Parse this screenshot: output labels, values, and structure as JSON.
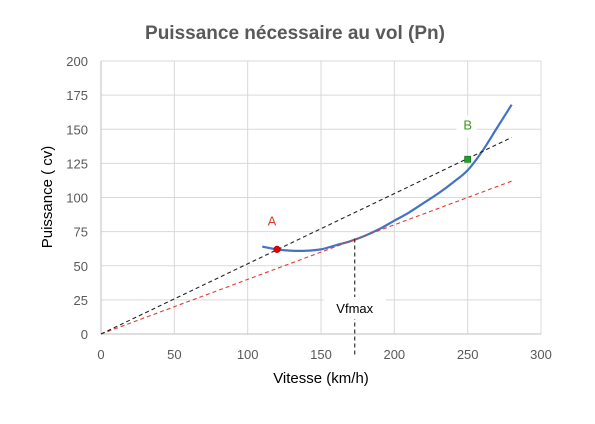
{
  "chart_data": {
    "type": "line",
    "title": "Puissance nécessaire au vol (Pn)",
    "xlabel": "Vitesse (km/h)",
    "ylabel": "Puissance ( cv)",
    "xlim": [
      0,
      300
    ],
    "ylim": [
      0,
      200
    ],
    "xticks": [
      0,
      50,
      100,
      150,
      200,
      250,
      300
    ],
    "yticks": [
      0,
      25,
      50,
      75,
      100,
      125,
      150,
      175,
      200
    ],
    "xtick_labels": [
      "0",
      "50",
      "100",
      "150",
      "200",
      "250",
      "300"
    ],
    "ytick_labels": [
      "0",
      "25",
      "50",
      "75",
      "100",
      "125",
      "150",
      "175",
      "200"
    ],
    "grid": true,
    "colors": {
      "curve": "#4472c4",
      "tangent_low": "#e03c31",
      "line_high": "#222222",
      "point_A": "#e00000",
      "point_B": "#22a02a",
      "label_A": "#e03c31",
      "label_B": "#3a9a1a",
      "vline": "#222222"
    },
    "series": [
      {
        "style": "solid",
        "x": [
          110,
          120,
          130,
          140,
          150,
          160,
          170,
          180,
          190,
          200,
          210,
          220,
          230,
          240,
          250,
          260,
          270,
          280
        ],
        "y": [
          64,
          62,
          61,
          61,
          62,
          65,
          68,
          72,
          77,
          83,
          89,
          96,
          103,
          111,
          120,
          134,
          151,
          168
        ]
      },
      {
        "style": "dashed",
        "x": [
          0,
          280
        ],
        "y": [
          0,
          112
        ]
      },
      {
        "style": "dashed",
        "x": [
          0,
          280
        ],
        "y": [
          0,
          144
        ]
      }
    ],
    "points": [
      {
        "label": "A",
        "x": 120,
        "y": 62
      },
      {
        "label": "B",
        "x": 250,
        "y": 128
      }
    ],
    "vline": {
      "x": 173,
      "y": 70,
      "label": "Vfmax"
    }
  }
}
